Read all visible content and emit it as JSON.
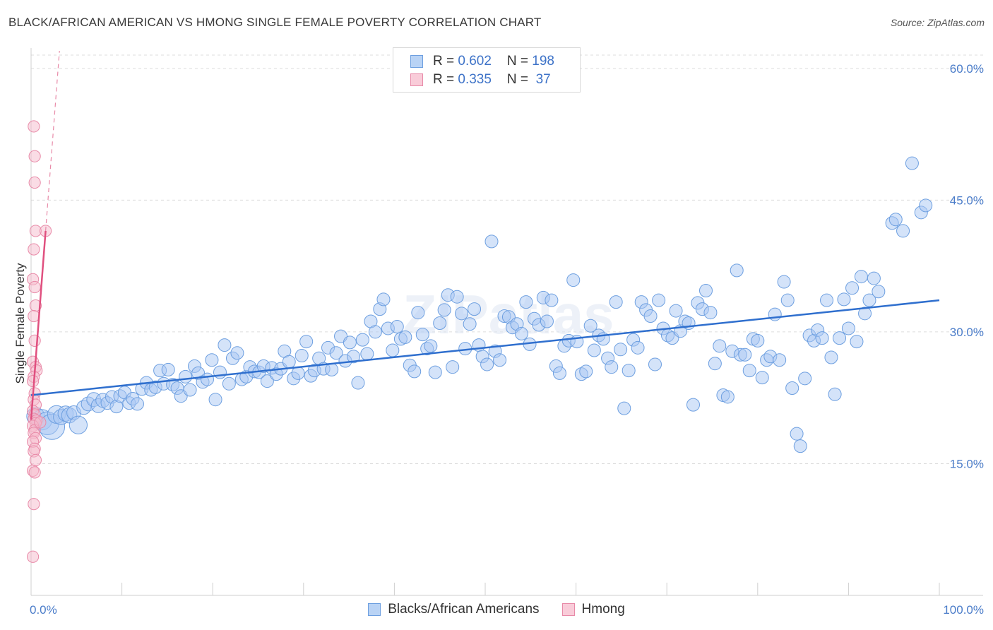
{
  "title": "BLACK/AFRICAN AMERICAN VS HMONG SINGLE FEMALE POVERTY CORRELATION CHART",
  "source": "Source: ZipAtlas.com",
  "watermark": "ZIPatlas",
  "legend": {
    "rows": [
      {
        "r_label": "R = ",
        "r_value": "0.602",
        "n_label": "N = ",
        "n_value": "198"
      },
      {
        "r_label": "R = ",
        "r_value": "0.335",
        "n_label": "N = ",
        "n_value": " 37"
      }
    ]
  },
  "colors": {
    "blue_fill": "#a9c8f3",
    "blue_stroke": "#6d9fe0",
    "blue_line": "#2f6fce",
    "pink_fill": "#f6b9cb",
    "pink_stroke": "#e88aa8",
    "pink_line": "#e0507f",
    "grid": "#dcdcdc",
    "tick_text": "#4a7cc9"
  },
  "chart_data": {
    "type": "scatter",
    "title": "BLACK/AFRICAN AMERICAN VS HMONG SINGLE FEMALE POVERTY CORRELATION CHART",
    "xlabel": "",
    "ylabel": "Single Female Poverty",
    "xlim": [
      0,
      100
    ],
    "ylim": [
      0,
      62
    ],
    "x_tick_labels": [
      "0.0%",
      "100.0%"
    ],
    "y_ticks": [
      15,
      30,
      45,
      60
    ],
    "y_tick_labels": [
      "15.0%",
      "30.0%",
      "45.0%",
      "60.0%"
    ],
    "grid": true,
    "legend_position": "bottom",
    "series": [
      {
        "name": "Blacks/African Americans",
        "color": "#a9c8f3",
        "trend": {
          "x": [
            0,
            100
          ],
          "y": [
            22.8,
            33.6
          ]
        },
        "points": [
          [
            0.5,
            20.4,
            14
          ],
          [
            1.2,
            20.0,
            16
          ],
          [
            1.8,
            19.6,
            18
          ],
          [
            2.3,
            19.2,
            20
          ],
          [
            2.8,
            20.6,
            14
          ],
          [
            3.3,
            20.3,
            12
          ],
          [
            3.8,
            20.7,
            12
          ],
          [
            4.2,
            20.5,
            12
          ],
          [
            4.7,
            20.8,
            11
          ],
          [
            5.2,
            19.4,
            14
          ],
          [
            5.8,
            21.4,
            11
          ],
          [
            6.3,
            21.8,
            11
          ],
          [
            6.9,
            22.3,
            11
          ],
          [
            7.4,
            21.6,
            11
          ],
          [
            7.9,
            22.2,
            11
          ],
          [
            8.4,
            21.9,
            10
          ],
          [
            8.9,
            22.6,
            10
          ],
          [
            9.4,
            21.5,
            10
          ],
          [
            9.8,
            22.7,
            10
          ],
          [
            10.3,
            23.1,
            10
          ],
          [
            10.8,
            21.9,
            10
          ],
          [
            11.2,
            22.4,
            10
          ],
          [
            11.7,
            21.8,
            10
          ],
          [
            12.2,
            23.5,
            10
          ],
          [
            12.7,
            24.2,
            10
          ],
          [
            13.2,
            23.4,
            10
          ],
          [
            13.7,
            23.7,
            10
          ],
          [
            14.2,
            25.6,
            10
          ],
          [
            14.6,
            24.1,
            10
          ],
          [
            15.1,
            25.7,
            10
          ],
          [
            15.6,
            24.0,
            10
          ],
          [
            16.1,
            23.6,
            10
          ],
          [
            16.5,
            22.7,
            10
          ],
          [
            17.0,
            24.9,
            10
          ],
          [
            17.5,
            23.4,
            10
          ],
          [
            18.0,
            26.1,
            10
          ],
          [
            18.4,
            25.3,
            10
          ],
          [
            18.9,
            24.3,
            10
          ],
          [
            19.4,
            24.6,
            10
          ],
          [
            19.9,
            26.8,
            10
          ],
          [
            20.3,
            22.3,
            10
          ],
          [
            20.8,
            25.4,
            10
          ],
          [
            21.3,
            28.5,
            10
          ],
          [
            21.8,
            24.1,
            10
          ],
          [
            22.2,
            27.0,
            10
          ],
          [
            22.7,
            27.6,
            10
          ],
          [
            23.2,
            24.6,
            10
          ],
          [
            23.7,
            24.9,
            10
          ],
          [
            24.1,
            26.0,
            10
          ],
          [
            24.6,
            25.5,
            10
          ],
          [
            25.1,
            25.4,
            10
          ],
          [
            25.6,
            26.1,
            10
          ],
          [
            26.0,
            24.4,
            10
          ],
          [
            26.5,
            25.9,
            10
          ],
          [
            27.0,
            25.2,
            10
          ],
          [
            27.5,
            25.8,
            10
          ],
          [
            27.9,
            27.8,
            10
          ],
          [
            28.4,
            26.6,
            10
          ],
          [
            28.9,
            24.7,
            10
          ],
          [
            29.4,
            25.3,
            10
          ],
          [
            29.8,
            27.3,
            10
          ],
          [
            30.3,
            28.9,
            10
          ],
          [
            30.8,
            25.0,
            10
          ],
          [
            31.2,
            25.6,
            10
          ],
          [
            31.7,
            27.0,
            10
          ],
          [
            32.2,
            25.8,
            10
          ],
          [
            32.7,
            28.2,
            10
          ],
          [
            33.1,
            25.7,
            10
          ],
          [
            33.6,
            27.6,
            10
          ],
          [
            34.1,
            29.5,
            10
          ],
          [
            34.6,
            26.7,
            10
          ],
          [
            35.1,
            28.8,
            10
          ],
          [
            35.5,
            27.2,
            10
          ],
          [
            36.0,
            24.2,
            10
          ],
          [
            36.5,
            29.1,
            10
          ],
          [
            37.0,
            27.5,
            10
          ],
          [
            37.4,
            31.2,
            10
          ],
          [
            37.9,
            30.0,
            10
          ],
          [
            38.4,
            32.6,
            10
          ],
          [
            38.8,
            33.7,
            10
          ],
          [
            39.3,
            30.4,
            10
          ],
          [
            39.8,
            27.9,
            10
          ],
          [
            40.3,
            30.6,
            10
          ],
          [
            40.7,
            29.2,
            10
          ],
          [
            41.2,
            29.4,
            10
          ],
          [
            41.7,
            26.2,
            10
          ],
          [
            42.2,
            25.5,
            10
          ],
          [
            42.6,
            32.2,
            10
          ],
          [
            43.1,
            29.7,
            10
          ],
          [
            43.6,
            28.1,
            10
          ],
          [
            44.0,
            28.4,
            10
          ],
          [
            44.5,
            25.4,
            10
          ],
          [
            45.0,
            31.0,
            10
          ],
          [
            45.5,
            32.5,
            10
          ],
          [
            45.9,
            34.2,
            10
          ],
          [
            46.4,
            26.0,
            10
          ],
          [
            46.9,
            34.0,
            10
          ],
          [
            47.4,
            32.1,
            10
          ],
          [
            47.8,
            28.1,
            10
          ],
          [
            48.3,
            30.9,
            10
          ],
          [
            48.8,
            32.6,
            10
          ],
          [
            49.3,
            28.5,
            10
          ],
          [
            49.7,
            27.2,
            10
          ],
          [
            50.2,
            26.3,
            10
          ],
          [
            50.7,
            40.3,
            10
          ],
          [
            51.1,
            27.8,
            10
          ],
          [
            51.6,
            26.8,
            10
          ],
          [
            52.1,
            31.8,
            10
          ],
          [
            52.6,
            31.7,
            10
          ],
          [
            53.0,
            30.5,
            10
          ],
          [
            53.5,
            30.9,
            10
          ],
          [
            54.0,
            29.8,
            10
          ],
          [
            54.5,
            33.4,
            10
          ],
          [
            54.9,
            28.6,
            10
          ],
          [
            55.4,
            31.5,
            10
          ],
          [
            55.9,
            30.8,
            10
          ],
          [
            56.4,
            33.9,
            10
          ],
          [
            56.8,
            31.2,
            10
          ],
          [
            57.3,
            33.6,
            10
          ],
          [
            57.8,
            26.1,
            10
          ],
          [
            58.2,
            25.3,
            10
          ],
          [
            58.7,
            28.4,
            10
          ],
          [
            59.2,
            29.0,
            10
          ],
          [
            59.7,
            35.9,
            10
          ],
          [
            60.1,
            28.9,
            10
          ],
          [
            60.6,
            25.2,
            10
          ],
          [
            61.1,
            25.5,
            10
          ],
          [
            61.6,
            30.7,
            10
          ],
          [
            62.0,
            27.9,
            10
          ],
          [
            62.5,
            29.6,
            10
          ],
          [
            63.0,
            29.2,
            10
          ],
          [
            63.5,
            27.0,
            10
          ],
          [
            63.9,
            26.0,
            10
          ],
          [
            64.4,
            33.4,
            10
          ],
          [
            64.9,
            28.0,
            10
          ],
          [
            65.3,
            21.3,
            10
          ],
          [
            65.8,
            25.6,
            10
          ],
          [
            66.3,
            29.1,
            10
          ],
          [
            66.8,
            28.2,
            10
          ],
          [
            67.2,
            33.4,
            10
          ],
          [
            67.7,
            32.5,
            10
          ],
          [
            68.2,
            31.8,
            10
          ],
          [
            68.7,
            26.3,
            10
          ],
          [
            69.1,
            33.6,
            10
          ],
          [
            69.6,
            30.4,
            10
          ],
          [
            70.1,
            29.6,
            10
          ],
          [
            70.6,
            29.3,
            10
          ],
          [
            71.0,
            32.4,
            10
          ],
          [
            71.5,
            30.1,
            10
          ],
          [
            72.0,
            31.2,
            10
          ],
          [
            72.4,
            31.0,
            10
          ],
          [
            72.9,
            21.7,
            10
          ],
          [
            73.4,
            33.3,
            10
          ],
          [
            73.9,
            32.6,
            10
          ],
          [
            74.3,
            34.7,
            10
          ],
          [
            74.8,
            32.2,
            10
          ],
          [
            75.3,
            26.4,
            10
          ],
          [
            75.8,
            28.4,
            10
          ],
          [
            76.2,
            22.8,
            10
          ],
          [
            76.7,
            22.6,
            10
          ],
          [
            77.2,
            27.8,
            10
          ],
          [
            77.7,
            37.0,
            10
          ],
          [
            78.1,
            27.4,
            10
          ],
          [
            78.6,
            27.4,
            10
          ],
          [
            79.1,
            25.6,
            10
          ],
          [
            79.5,
            29.2,
            10
          ],
          [
            80.0,
            29.0,
            10
          ],
          [
            80.5,
            24.8,
            10
          ],
          [
            81.0,
            26.8,
            10
          ],
          [
            81.4,
            27.2,
            10
          ],
          [
            81.9,
            32.0,
            10
          ],
          [
            82.4,
            26.8,
            10
          ],
          [
            82.9,
            35.7,
            10
          ],
          [
            83.3,
            33.6,
            10
          ],
          [
            83.8,
            23.6,
            10
          ],
          [
            84.3,
            18.4,
            10
          ],
          [
            84.7,
            17.0,
            10
          ],
          [
            85.2,
            24.7,
            10
          ],
          [
            85.7,
            29.6,
            10
          ],
          [
            86.2,
            29.0,
            10
          ],
          [
            86.6,
            30.2,
            10
          ],
          [
            87.1,
            29.3,
            10
          ],
          [
            87.6,
            33.6,
            10
          ],
          [
            88.1,
            27.1,
            10
          ],
          [
            88.5,
            22.9,
            10
          ],
          [
            89.0,
            29.3,
            10
          ],
          [
            89.5,
            33.7,
            10
          ],
          [
            90.0,
            30.4,
            10
          ],
          [
            90.4,
            35.0,
            10
          ],
          [
            90.9,
            28.9,
            10
          ],
          [
            91.4,
            36.3,
            10
          ],
          [
            91.8,
            32.1,
            10
          ],
          [
            92.3,
            33.6,
            10
          ],
          [
            92.8,
            36.1,
            10
          ],
          [
            93.3,
            34.6,
            10
          ],
          [
            94.8,
            42.4,
            10
          ],
          [
            95.2,
            42.8,
            10
          ],
          [
            96.0,
            41.5,
            10
          ],
          [
            97.0,
            49.2,
            10
          ],
          [
            98.0,
            43.6,
            10
          ],
          [
            98.5,
            44.4,
            10
          ]
        ]
      },
      {
        "name": "Hmong",
        "color": "#f6b9cb",
        "trend": {
          "x": [
            0,
            1.6
          ],
          "y": [
            20.0,
            41.5
          ],
          "dashed_extension_to_y": 62
        },
        "points": [
          [
            0.3,
            53.4,
            9
          ],
          [
            0.4,
            50.0,
            9
          ],
          [
            0.4,
            47.0,
            9
          ],
          [
            0.5,
            41.5,
            9
          ],
          [
            0.3,
            39.4,
            9
          ],
          [
            0.2,
            36.0,
            9
          ],
          [
            0.4,
            35.1,
            9
          ],
          [
            0.5,
            33.0,
            9
          ],
          [
            0.3,
            31.8,
            9
          ],
          [
            0.4,
            29.0,
            9
          ],
          [
            0.2,
            26.6,
            9
          ],
          [
            0.5,
            26.0,
            9
          ],
          [
            0.6,
            25.6,
            9
          ],
          [
            0.3,
            24.9,
            9
          ],
          [
            0.2,
            24.4,
            9
          ],
          [
            0.4,
            23.0,
            9
          ],
          [
            0.3,
            22.3,
            9
          ],
          [
            0.5,
            21.7,
            9
          ],
          [
            0.2,
            21.0,
            9
          ],
          [
            0.4,
            20.6,
            9
          ],
          [
            0.3,
            20.1,
            9
          ],
          [
            0.6,
            19.9,
            9
          ],
          [
            0.5,
            19.6,
            9
          ],
          [
            0.2,
            19.3,
            9
          ],
          [
            0.4,
            18.8,
            9
          ],
          [
            0.3,
            18.5,
            9
          ],
          [
            0.5,
            17.9,
            9
          ],
          [
            0.2,
            17.5,
            9
          ],
          [
            0.4,
            16.7,
            9
          ],
          [
            0.3,
            16.4,
            9
          ],
          [
            0.5,
            15.4,
            9
          ],
          [
            0.2,
            14.2,
            9
          ],
          [
            0.4,
            14.0,
            9
          ],
          [
            0.3,
            10.4,
            9
          ],
          [
            0.2,
            4.4,
            9
          ],
          [
            1.0,
            19.7,
            9
          ],
          [
            1.6,
            41.5,
            9
          ]
        ]
      }
    ]
  }
}
